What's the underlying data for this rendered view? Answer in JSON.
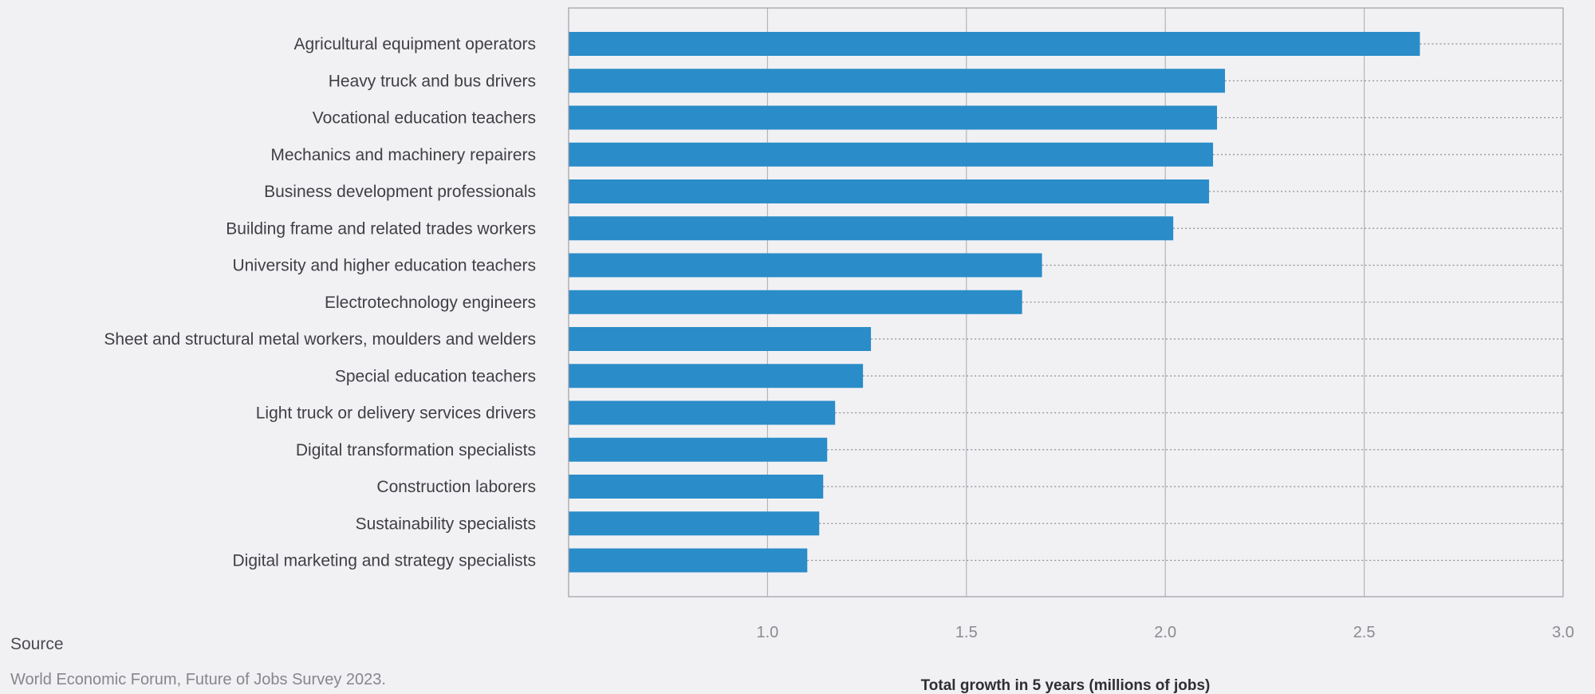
{
  "chart_data": {
    "type": "bar",
    "orientation": "horizontal",
    "categories": [
      "Agricultural equipment operators",
      "Heavy truck and bus drivers",
      "Vocational education teachers",
      "Mechanics and machinery repairers",
      "Business development professionals",
      "Building frame and related trades workers",
      "University and higher education teachers",
      "Electrotechnology engineers",
      "Sheet and structural metal workers, moulders and welders",
      "Special education teachers",
      "Light truck or delivery services drivers",
      "Digital transformation specialists",
      "Construction laborers",
      "Sustainability specialists",
      "Digital marketing and strategy specialists"
    ],
    "values": [
      2.64,
      2.15,
      2.13,
      2.12,
      2.11,
      2.02,
      1.69,
      1.64,
      1.26,
      1.24,
      1.17,
      1.15,
      1.14,
      1.13,
      1.1
    ],
    "xlim": [
      0.5,
      3.0
    ],
    "xticks": [
      1.0,
      1.5,
      2.0,
      2.5,
      3.0
    ],
    "xtick_labels": [
      "1.0",
      "1.5",
      "2.0",
      "2.5",
      "3.0"
    ],
    "xlabel": "Total growth in 5 years (millions of jobs)",
    "ylabel": "",
    "grid": true,
    "bar_color": "#2a8cc8"
  },
  "source": {
    "heading": "Source",
    "text": "World Economic Forum, Future of Jobs Survey 2023."
  }
}
